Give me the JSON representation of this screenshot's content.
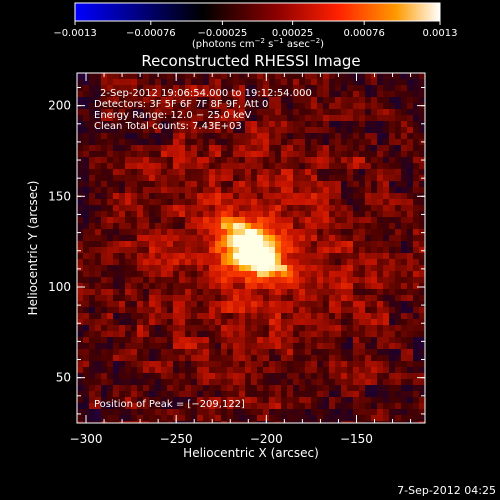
{
  "chart_data": {
    "type": "heatmap",
    "title": "Reconstructed RHESSI Image",
    "xlabel": "Heliocentric X (arcsec)",
    "ylabel": "Heliocentric Y (arcsec)",
    "xlim": [
      -305,
      -112
    ],
    "ylim": [
      25,
      218
    ],
    "x_ticks": [
      -300,
      -250,
      -200,
      -150
    ],
    "x_tick_labels": [
      "−300",
      "−250",
      "−200",
      "−150"
    ],
    "y_ticks": [
      50,
      100,
      150,
      200
    ],
    "y_tick_labels": [
      "50",
      "100",
      "150",
      "200"
    ],
    "colorbar": {
      "min": -0.0013,
      "max": 0.0013,
      "ticks": [
        -0.0013,
        -0.00076,
        -0.00025,
        0.00025,
        0.00076,
        0.0013
      ],
      "tick_labels": [
        "−0.0013",
        "−0.00076",
        "−0.00025",
        "0.00025",
        "0.00076",
        "0.0013"
      ],
      "colors": [
        "#0000ff",
        "#000000",
        "#7a0000",
        "#ff2000",
        "#ff9a00",
        "#ffffff"
      ]
    },
    "units": {
      "prefix": "(photons cm",
      "exp1": "−2",
      "mid": " s",
      "exp2": "−1",
      "mid2": " asec",
      "exp3": "−2",
      "suffix": ")"
    },
    "info_lines": [
      "2-Sep-2012 19:06:54.000 to 19:12:54.000",
      "Detectors: 3F 5F 6F 7F 8F 9F, Att 0",
      "Energy Range: 12.0 − 25.0 keV",
      "Clean     Total counts: 7.43E+03"
    ],
    "peak_label": "Position of Peak = [−209,122]",
    "peak": [
      -209,
      122
    ],
    "sources": [
      {
        "x": -209,
        "y": 122,
        "intensity": 0.0013
      }
    ]
  },
  "footer": {
    "timestamp": "7-Sep-2012 04:25"
  }
}
